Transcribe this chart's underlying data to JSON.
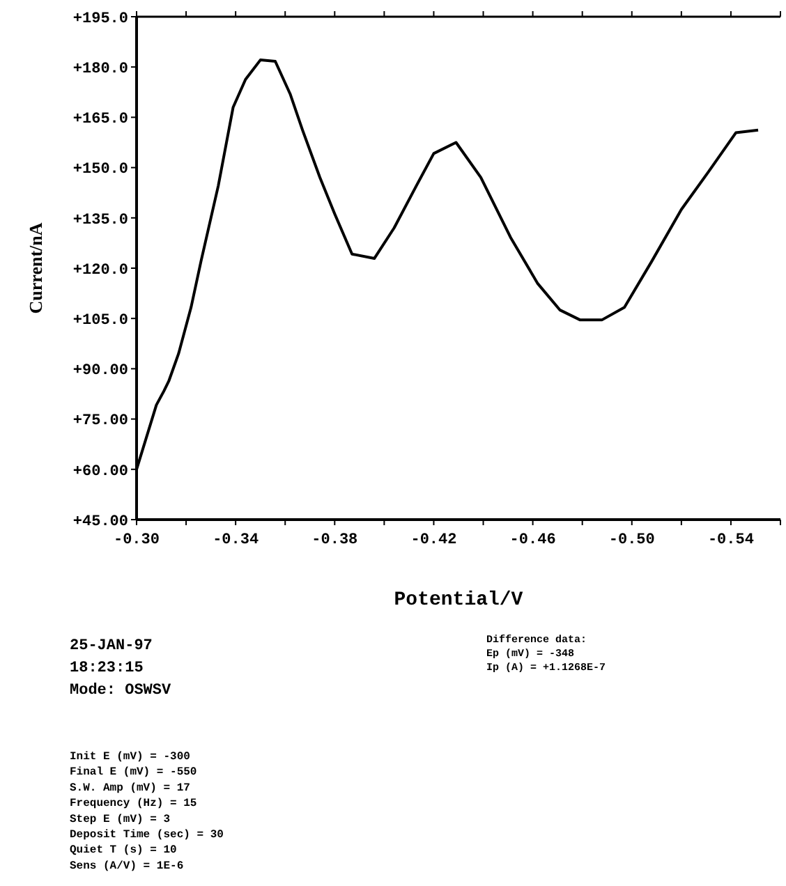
{
  "chart_data": {
    "type": "line",
    "xlabel": "Potential/V",
    "ylabel": "Current/nA",
    "x": [
      -0.3,
      -0.308,
      -0.311,
      -0.313,
      -0.317,
      -0.322,
      -0.326,
      -0.333,
      -0.339,
      -0.344,
      -0.35,
      -0.356,
      -0.362,
      -0.367,
      -0.374,
      -0.38,
      -0.387,
      -0.396,
      -0.404,
      -0.413,
      -0.42,
      -0.429,
      -0.439,
      -0.451,
      -0.462,
      -0.471,
      -0.479,
      -0.488,
      -0.497,
      -0.508,
      -0.52,
      -0.531,
      -0.542,
      -0.551
    ],
    "series": [
      {
        "color": "#000000",
        "values": [
          60,
          79.2,
          83.3,
          86.3,
          94.6,
          108.3,
          122,
          144.6,
          168,
          176.3,
          182.1,
          181.7,
          172,
          161.2,
          147.1,
          136.2,
          124.2,
          122.9,
          132,
          144.6,
          154.2,
          157.5,
          147.1,
          129.2,
          115.4,
          107.5,
          104.6,
          104.6,
          108.3,
          122,
          137.5,
          148.8,
          160.4,
          161.2
        ]
      }
    ],
    "xlim": [
      -0.3,
      -0.56
    ],
    "xticks": [
      {
        "value": -0.3,
        "label": "-0.30"
      },
      {
        "value": -0.32,
        "label": null
      },
      {
        "value": -0.34,
        "label": "-0.34"
      },
      {
        "value": -0.36,
        "label": null
      },
      {
        "value": -0.38,
        "label": "-0.38"
      },
      {
        "value": -0.4,
        "label": null
      },
      {
        "value": -0.42,
        "label": "-0.42"
      },
      {
        "value": -0.44,
        "label": null
      },
      {
        "value": -0.46,
        "label": "-0.46"
      },
      {
        "value": -0.48,
        "label": null
      },
      {
        "value": -0.5,
        "label": "-0.50"
      },
      {
        "value": -0.52,
        "label": null
      },
      {
        "value": -0.54,
        "label": "-0.54"
      },
      {
        "value": -0.56,
        "label": null
      }
    ],
    "ylim": [
      45,
      195
    ],
    "yticks": [
      {
        "value": 45,
        "label": "+45.00"
      },
      {
        "value": 60,
        "label": "+60.00"
      },
      {
        "value": 75,
        "label": "+75.00"
      },
      {
        "value": 90,
        "label": "+90.00"
      },
      {
        "value": 105,
        "label": "+105.0"
      },
      {
        "value": 120,
        "label": "+120.0"
      },
      {
        "value": 135,
        "label": "+135.0"
      },
      {
        "value": 150,
        "label": "+150.0"
      },
      {
        "value": 165,
        "label": "+165.0"
      },
      {
        "value": 180,
        "label": "+180.0"
      },
      {
        "value": 195,
        "label": "+195.0"
      }
    ],
    "grid": false,
    "marker": "none",
    "line_style": "solid",
    "annotations": [
      "25-JAN-97\n18:23:15\nMode: OSWSV",
      "Init E (mV) = -300\nFinal E (mV) = -550\nS.W. Amp (mV) = 17\nFrequency (Hz) = 15\nStep E (mV) = 3\nDeposit Time (sec) = 30\nQuiet T (s) = 10\nSens (A/V) = 1E-6",
      "Difference data:\nEp (mV) = -348\nIp (A) = +1.1268E-7"
    ]
  }
}
